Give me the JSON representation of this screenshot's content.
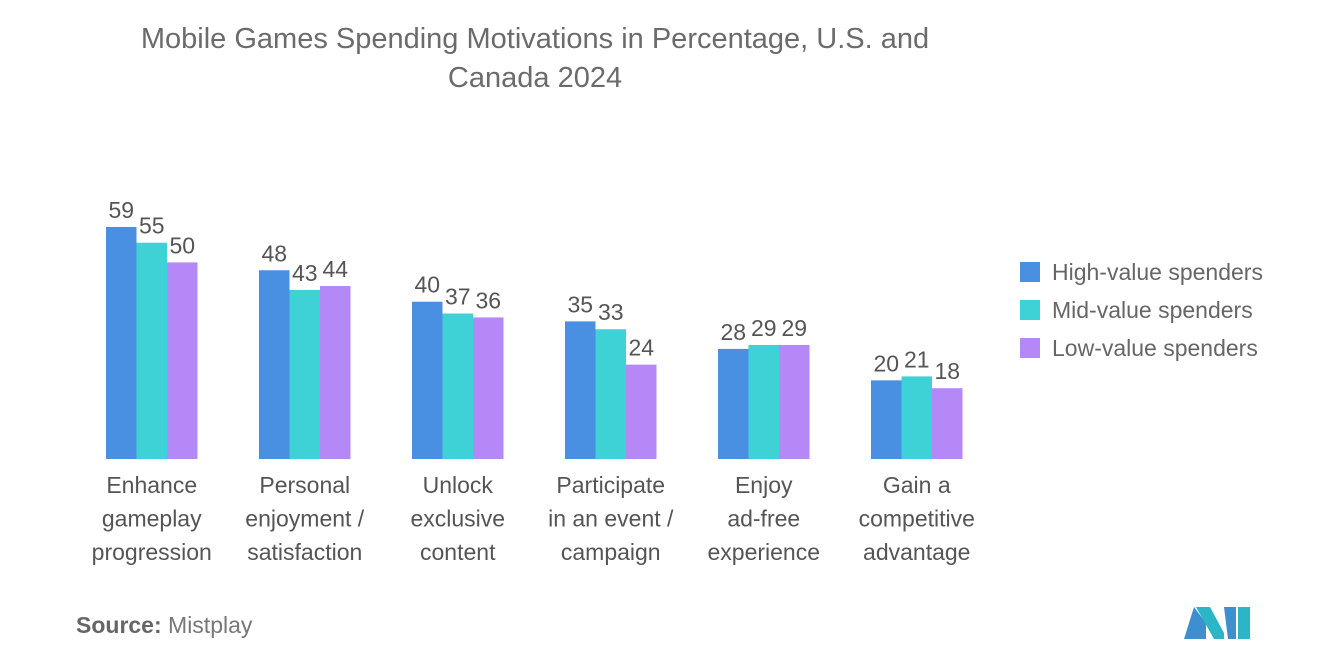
{
  "title_line1": "Mobile Games Spending Motivations in Percentage, U.S. and",
  "title_line2": "Canada 2024",
  "source_label": "Source:",
  "source_value": "Mistplay",
  "colors": {
    "high": "#4a90e2",
    "mid": "#3ed1d6",
    "low": "#b488f7"
  },
  "chart_data": {
    "type": "bar",
    "title": "Mobile Games Spending Motivations in Percentage, U.S. and Canada 2024",
    "categories": [
      [
        "Enhance",
        "gameplay",
        "progression"
      ],
      [
        "Personal",
        "enjoyment /",
        "satisfaction"
      ],
      [
        "Unlock",
        "exclusive",
        "content"
      ],
      [
        "Participate",
        "in an event /",
        "campaign"
      ],
      [
        "Enjoy",
        "ad-free",
        "experience"
      ],
      [
        "Gain a",
        "competitive",
        "advantage"
      ]
    ],
    "series": [
      {
        "name": "High-value spenders",
        "values": [
          59,
          48,
          40,
          35,
          28,
          20
        ]
      },
      {
        "name": "Mid-value spenders",
        "values": [
          55,
          43,
          37,
          33,
          29,
          21
        ]
      },
      {
        "name": "Low-value spenders",
        "values": [
          50,
          44,
          36,
          24,
          29,
          18
        ]
      }
    ],
    "ylim": [
      0,
      60
    ],
    "xlabel": "",
    "ylabel": "",
    "legend_position": "right",
    "grid": false
  }
}
